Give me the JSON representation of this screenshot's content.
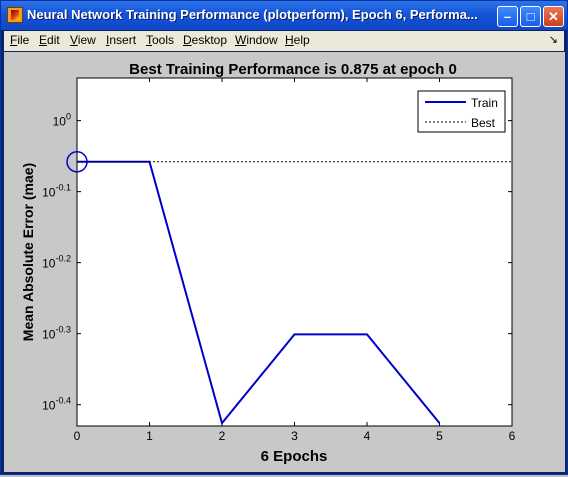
{
  "window": {
    "title": "Neural Network Training Performance (plotperform), Epoch 6, Performa...",
    "minimize_glyph": "–",
    "maximize_glyph": "□",
    "close_glyph": "✕"
  },
  "menu": {
    "items": [
      "File",
      "Edit",
      "View",
      "Insert",
      "Tools",
      "Desktop",
      "Window",
      "Help"
    ],
    "dock_glyph": "↘"
  },
  "colors": {
    "train": "#0000cc",
    "best": "#000000"
  },
  "chart_data": {
    "type": "line",
    "title": "Best Training Performance is 0.875 at epoch 0",
    "xlabel": "6 Epochs",
    "ylabel": "Mean Absolute Error  (mae)",
    "yscale": "log",
    "xlim": [
      0,
      6
    ],
    "ylim_exponent": [
      -0.43,
      0.06
    ],
    "x_ticks": [
      0,
      1,
      2,
      3,
      4,
      5,
      6
    ],
    "y_ticks": [
      {
        "value": 1,
        "base": "10",
        "exp": "0"
      },
      {
        "value": 0.7943,
        "base": "10",
        "exp": "-0.1"
      },
      {
        "value": 0.631,
        "base": "10",
        "exp": "-0.2"
      },
      {
        "value": 0.5012,
        "base": "10",
        "exp": "-0.3"
      },
      {
        "value": 0.3981,
        "base": "10",
        "exp": "-0.4"
      }
    ],
    "series": [
      {
        "name": "Train",
        "x": [
          0,
          1,
          2,
          3,
          4,
          5
        ],
        "y": [
          0.875,
          0.875,
          0.375,
          0.5,
          0.5,
          0.375
        ]
      },
      {
        "name": "Best",
        "style": "dotted",
        "y_constant": 0.875
      }
    ],
    "best_marker": {
      "x": 0,
      "y": 0.875
    },
    "legend_position": "top-right",
    "grid": false
  }
}
